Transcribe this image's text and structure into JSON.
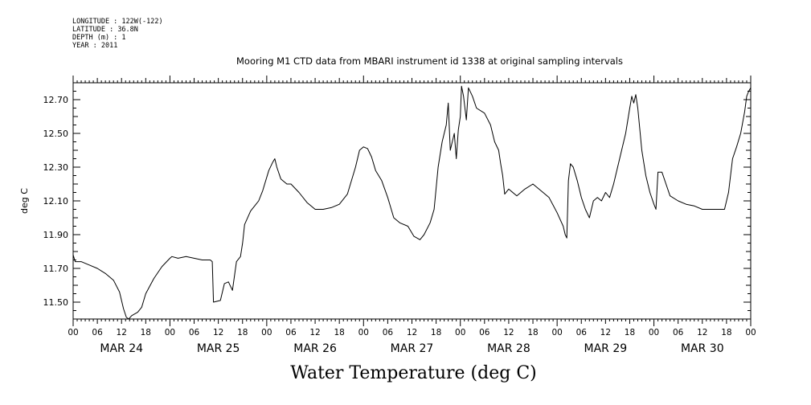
{
  "metadata": [
    {
      "label": "LONGITUDE",
      "value": "122W(-122)"
    },
    {
      "label": "LATITUDE",
      "value": "36.8N"
    },
    {
      "label": "DEPTH (m)",
      "value": "1"
    },
    {
      "label": "YEAR",
      "value": "2011"
    }
  ],
  "chart_data": {
    "type": "line",
    "title": "Mooring M1 CTD data from MBARI instrument id 1338 at original sampling intervals",
    "xlabel": "Water Temperature (deg C)",
    "ylabel": "deg C",
    "x_unit": "hours since MAR 24 00",
    "xlim": [
      0,
      168
    ],
    "ylim": [
      11.4,
      12.8
    ],
    "y_ticks": [
      11.5,
      11.7,
      11.9,
      12.1,
      12.3,
      12.5,
      12.7
    ],
    "y_tick_labels": [
      "11.50",
      "11.70",
      "11.90",
      "12.10",
      "12.30",
      "12.50",
      "12.70"
    ],
    "hour_tick_labels": [
      "00",
      "06",
      "12",
      "18",
      "00",
      "06",
      "12",
      "18",
      "00",
      "06",
      "12",
      "18",
      "00",
      "06",
      "12",
      "18",
      "00",
      "06",
      "12",
      "18",
      "00",
      "06",
      "12",
      "18",
      "00",
      "06",
      "12",
      "18",
      "00"
    ],
    "day_labels": [
      "MAR 24",
      "MAR 25",
      "MAR 26",
      "MAR 27",
      "MAR 28",
      "MAR 29",
      "MAR 30"
    ],
    "grid": false,
    "series": [
      {
        "points": [
          [
            0,
            11.78
          ],
          [
            0.5,
            11.74
          ],
          [
            2,
            11.74
          ],
          [
            4,
            11.72
          ],
          [
            6,
            11.7
          ],
          [
            8,
            11.67
          ],
          [
            10,
            11.63
          ],
          [
            11.5,
            11.56
          ],
          [
            12.5,
            11.46
          ],
          [
            13.2,
            11.41
          ],
          [
            13.8,
            11.4
          ],
          [
            14.5,
            11.42
          ],
          [
            16,
            11.44
          ],
          [
            17,
            11.47
          ],
          [
            18,
            11.55
          ],
          [
            20,
            11.64
          ],
          [
            22,
            11.71
          ],
          [
            24,
            11.76
          ],
          [
            24.5,
            11.77
          ],
          [
            26,
            11.76
          ],
          [
            28,
            11.77
          ],
          [
            30,
            11.76
          ],
          [
            32,
            11.75
          ],
          [
            34,
            11.75
          ],
          [
            34.5,
            11.74
          ],
          [
            34.8,
            11.5
          ],
          [
            36.5,
            11.51
          ],
          [
            37.5,
            11.61
          ],
          [
            38.5,
            11.62
          ],
          [
            39.5,
            11.57
          ],
          [
            40.5,
            11.74
          ],
          [
            41.5,
            11.77
          ],
          [
            42,
            11.85
          ],
          [
            42.5,
            11.96
          ],
          [
            44,
            12.04
          ],
          [
            46,
            12.1
          ],
          [
            47,
            12.16
          ],
          [
            48.5,
            12.28
          ],
          [
            49.5,
            12.33
          ],
          [
            50,
            12.35
          ],
          [
            50.5,
            12.3
          ],
          [
            51.5,
            12.23
          ],
          [
            53,
            12.2
          ],
          [
            54,
            12.2
          ],
          [
            56,
            12.15
          ],
          [
            58,
            12.09
          ],
          [
            60,
            12.05
          ],
          [
            62,
            12.05
          ],
          [
            64,
            12.06
          ],
          [
            66,
            12.08
          ],
          [
            68,
            12.14
          ],
          [
            70,
            12.3
          ],
          [
            71,
            12.4
          ],
          [
            72,
            12.42
          ],
          [
            73,
            12.41
          ],
          [
            74,
            12.36
          ],
          [
            75,
            12.28
          ],
          [
            76.5,
            12.22
          ],
          [
            78,
            12.12
          ],
          [
            79.5,
            12.0
          ],
          [
            81,
            11.97
          ],
          [
            83,
            11.95
          ],
          [
            84.5,
            11.89
          ],
          [
            86,
            11.87
          ],
          [
            87,
            11.9
          ],
          [
            88.5,
            11.97
          ],
          [
            89.5,
            12.05
          ],
          [
            90.5,
            12.3
          ],
          [
            91.5,
            12.45
          ],
          [
            92.5,
            12.55
          ],
          [
            93,
            12.68
          ],
          [
            93.5,
            12.4
          ],
          [
            94.5,
            12.5
          ],
          [
            95,
            12.35
          ],
          [
            95.5,
            12.52
          ],
          [
            96,
            12.6
          ],
          [
            96.3,
            12.78
          ],
          [
            96.8,
            12.72
          ],
          [
            97.5,
            12.58
          ],
          [
            98,
            12.77
          ],
          [
            99,
            12.72
          ],
          [
            100,
            12.65
          ],
          [
            102,
            12.62
          ],
          [
            103.5,
            12.55
          ],
          [
            104.5,
            12.45
          ],
          [
            105.5,
            12.4
          ],
          [
            106,
            12.32
          ],
          [
            106.5,
            12.25
          ],
          [
            107,
            12.14
          ],
          [
            108,
            12.17
          ],
          [
            110,
            12.13
          ],
          [
            112,
            12.17
          ],
          [
            114,
            12.2
          ],
          [
            116,
            12.16
          ],
          [
            118,
            12.12
          ],
          [
            120,
            12.03
          ],
          [
            121.5,
            11.95
          ],
          [
            122,
            11.9
          ],
          [
            122.4,
            11.88
          ],
          [
            122.8,
            12.22
          ],
          [
            123.3,
            12.32
          ],
          [
            124,
            12.3
          ],
          [
            125,
            12.22
          ],
          [
            126,
            12.12
          ],
          [
            127,
            12.05
          ],
          [
            128,
            12.0
          ],
          [
            129,
            12.1
          ],
          [
            130,
            12.12
          ],
          [
            131,
            12.1
          ],
          [
            132,
            12.15
          ],
          [
            133,
            12.12
          ],
          [
            134,
            12.2
          ],
          [
            135,
            12.3
          ],
          [
            136,
            12.4
          ],
          [
            137,
            12.5
          ],
          [
            138,
            12.65
          ],
          [
            138.5,
            12.72
          ],
          [
            139,
            12.68
          ],
          [
            139.5,
            12.73
          ],
          [
            140,
            12.65
          ],
          [
            141,
            12.4
          ],
          [
            142,
            12.25
          ],
          [
            143,
            12.15
          ],
          [
            144,
            12.08
          ],
          [
            144.5,
            12.05
          ],
          [
            145,
            12.27
          ],
          [
            146,
            12.27
          ],
          [
            147,
            12.2
          ],
          [
            148,
            12.13
          ],
          [
            150,
            12.1
          ],
          [
            152,
            12.08
          ],
          [
            154,
            12.07
          ],
          [
            156,
            12.05
          ],
          [
            158,
            12.05
          ],
          [
            160,
            12.05
          ],
          [
            161.5,
            12.05
          ],
          [
            162.5,
            12.15
          ],
          [
            163.5,
            12.35
          ],
          [
            164.5,
            12.42
          ],
          [
            165.5,
            12.5
          ],
          [
            166.5,
            12.63
          ],
          [
            167,
            12.72
          ],
          [
            167.5,
            12.75
          ],
          [
            168,
            12.77
          ]
        ]
      }
    ]
  }
}
